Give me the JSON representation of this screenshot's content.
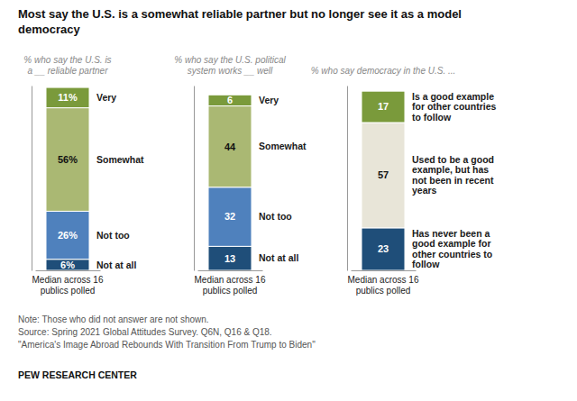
{
  "title": [
    "Most say the U.S. is a somewhat reliable partner but no longer see it as a model",
    "democracy"
  ],
  "annotations": [
    "Note: Those who did not answer are not shown.",
    "Source: Spring 2021 Global Attitudes Survey. Q6N, Q16 & Q18.",
    "\"America's Image Abroad Rebounds With Transition From Trump to Biden\""
  ],
  "source": "PEW RESEARCH CENTER",
  "chart_data": [
    {
      "type": "bar",
      "stacked": true,
      "data_labels": true,
      "tick_labels": false,
      "subtitle": "% who say the U.S. is\na __ reliable partner",
      "xlabel": "Median across 16\npublics polled",
      "categories": [
        null
      ],
      "ylim": [
        0,
        100
      ],
      "series": [
        {
          "name": "Not at all",
          "color": "#1f4e79",
          "values": [
            6
          ],
          "value_labels": [
            "6%"
          ]
        },
        {
          "name": "Not too",
          "color": "#4f81bd",
          "values": [
            26
          ],
          "value_labels": [
            "26%"
          ]
        },
        {
          "name": "Somewhat",
          "color": "#aab873",
          "values": [
            56
          ],
          "value_labels": [
            "56%"
          ]
        },
        {
          "name": "Very",
          "color": "#7a9a3b",
          "values": [
            11
          ],
          "value_labels": [
            "11%"
          ]
        }
      ]
    },
    {
      "type": "bar",
      "stacked": true,
      "data_labels": true,
      "tick_labels": false,
      "subtitle": "% who say the U.S. political\nsystem works __ well",
      "xlabel": "Median across 16\npublics polled",
      "categories": [
        null
      ],
      "ylim": [
        0,
        100
      ],
      "series": [
        {
          "name": "Not at all",
          "color": "#1f4e79",
          "values": [
            13
          ]
        },
        {
          "name": "Not too",
          "color": "#4f81bd",
          "values": [
            32
          ]
        },
        {
          "name": "Somewhat",
          "color": "#aab873",
          "values": [
            44
          ]
        },
        {
          "name": "Very",
          "color": "#7a9a3b",
          "values": [
            6
          ]
        }
      ]
    },
    {
      "type": "bar",
      "stacked": true,
      "data_labels": true,
      "tick_labels": false,
      "subtitle": "% who say democracy in the U.S. ...",
      "xlabel": "Median across 16\npublics polled",
      "categories": [
        null
      ],
      "ylim": [
        0,
        100
      ],
      "series": [
        {
          "name": "Has never been a\ngood example for\nother countries to\nfollow",
          "color": "#1f4e79",
          "values": [
            23
          ]
        },
        {
          "name": "Used to be a good\nexample, but has\nnot been in recent\nyears",
          "color": "#e8e5d8",
          "values": [
            57
          ]
        },
        {
          "name": "Is a good example\nfor other countries\nto follow",
          "color": "#7a9a3b",
          "values": [
            17
          ]
        }
      ]
    }
  ]
}
